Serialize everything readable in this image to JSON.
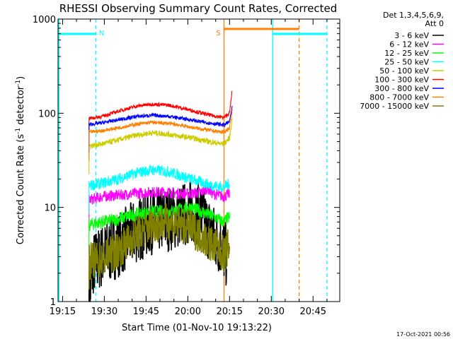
{
  "chart_data": {
    "type": "line",
    "title": "RHESSI Observing Summary Count Rates, Corrected",
    "xlabel": "Start Time (01-Nov-10 19:13:22)",
    "ylabel_main": "Corrected Count Rate (s",
    "ylabel_sup1": "-1",
    "ylabel_mid": " detector",
    "ylabel_sup2": "-1",
    "ylabel_end": ")",
    "yscale": "log",
    "ylim": [
      1,
      1000
    ],
    "yticks": [
      {
        "value": 1,
        "label": "1"
      },
      {
        "value": 10,
        "label": "10"
      },
      {
        "value": 100,
        "label": "100"
      },
      {
        "value": 1000,
        "label": "1000"
      }
    ],
    "xlim": [
      "19:13:22",
      "20:53:00"
    ],
    "xticks": [
      {
        "minutes": 0,
        "label": "19:15"
      },
      {
        "minutes": 15,
        "label": "19:30"
      },
      {
        "minutes": 30,
        "label": "19:45"
      },
      {
        "minutes": 45,
        "label": "20:00"
      },
      {
        "minutes": 60,
        "label": "20:15"
      },
      {
        "minutes": 75,
        "label": "20:30"
      },
      {
        "minutes": 90,
        "label": "20:45"
      }
    ],
    "legend_header": [
      "Det 1,3,4,5,6,9,",
      "Att 0"
    ],
    "legend_position": "right",
    "series": [
      {
        "name": "3 - 6 keV",
        "color": "#000000",
        "points": [
          [
            9.5,
            1
          ],
          [
            11,
            2.5
          ],
          [
            14,
            3
          ],
          [
            20,
            4
          ],
          [
            26,
            5.5
          ],
          [
            32,
            7
          ],
          [
            38,
            7.5
          ],
          [
            42,
            8
          ],
          [
            46,
            9
          ],
          [
            50,
            8
          ],
          [
            54,
            5
          ],
          [
            57,
            4
          ],
          [
            59,
            3
          ]
        ]
      },
      {
        "name": "6 - 12 keV",
        "color": "#ff00ff",
        "points": [
          [
            9.5,
            12
          ],
          [
            14,
            13
          ],
          [
            20,
            13.5
          ],
          [
            26,
            14
          ],
          [
            32,
            14.5
          ],
          [
            38,
            14.5
          ],
          [
            42,
            14
          ],
          [
            46,
            14
          ],
          [
            50,
            14.5
          ],
          [
            52,
            16
          ],
          [
            54,
            14
          ],
          [
            58,
            13
          ],
          [
            60,
            14
          ]
        ]
      },
      {
        "name": "12 - 25 keV",
        "color": "#00ff00",
        "points": [
          [
            9.5,
            6.5
          ],
          [
            14,
            7
          ],
          [
            20,
            7.5
          ],
          [
            26,
            8.5
          ],
          [
            32,
            9
          ],
          [
            38,
            9
          ],
          [
            42,
            9.5
          ],
          [
            46,
            10
          ],
          [
            50,
            9
          ],
          [
            54,
            8
          ],
          [
            58,
            7
          ],
          [
            60,
            8
          ]
        ]
      },
      {
        "name": "25 - 50 keV",
        "color": "#00ffff",
        "points": [
          [
            9.5,
            17
          ],
          [
            14,
            18
          ],
          [
            20,
            20
          ],
          [
            26,
            23
          ],
          [
            32,
            25
          ],
          [
            38,
            24
          ],
          [
            42,
            22
          ],
          [
            46,
            20
          ],
          [
            50,
            18.5
          ],
          [
            54,
            17
          ],
          [
            58,
            16.5
          ],
          [
            60,
            18
          ]
        ]
      },
      {
        "name": "50 - 100 keV",
        "color": "#cccc00",
        "points": [
          [
            9.5,
            45
          ],
          [
            14,
            47
          ],
          [
            20,
            52
          ],
          [
            26,
            58
          ],
          [
            32,
            62
          ],
          [
            38,
            60
          ],
          [
            42,
            57
          ],
          [
            46,
            55
          ],
          [
            50,
            52
          ],
          [
            54,
            49
          ],
          [
            58,
            47
          ],
          [
            60,
            55
          ],
          [
            61,
            90
          ]
        ]
      },
      {
        "name": "100 - 300 keV",
        "color": "#ff0000",
        "points": [
          [
            9.5,
            88
          ],
          [
            14,
            92
          ],
          [
            20,
            105
          ],
          [
            26,
            118
          ],
          [
            32,
            125
          ],
          [
            38,
            122
          ],
          [
            42,
            115
          ],
          [
            46,
            108
          ],
          [
            50,
            100
          ],
          [
            54,
            94
          ],
          [
            58,
            90
          ],
          [
            60,
            100
          ],
          [
            61,
            180
          ]
        ]
      },
      {
        "name": "300 - 800 keV",
        "color": "#0000ff",
        "points": [
          [
            9.5,
            76
          ],
          [
            14,
            79
          ],
          [
            20,
            85
          ],
          [
            26,
            92
          ],
          [
            32,
            95
          ],
          [
            38,
            93
          ],
          [
            42,
            89
          ],
          [
            46,
            85
          ],
          [
            50,
            81
          ],
          [
            54,
            78
          ],
          [
            58,
            75
          ],
          [
            60,
            82
          ],
          [
            61,
            120
          ]
        ]
      },
      {
        "name": "800 - 7000 keV",
        "color": "#ff8000",
        "points": [
          [
            9.5,
            63
          ],
          [
            14,
            65
          ],
          [
            20,
            70
          ],
          [
            26,
            76
          ],
          [
            32,
            80
          ],
          [
            38,
            78
          ],
          [
            42,
            75
          ],
          [
            46,
            71
          ],
          [
            50,
            68
          ],
          [
            54,
            65
          ],
          [
            58,
            63
          ],
          [
            60,
            70
          ],
          [
            61,
            110
          ]
        ]
      },
      {
        "name": "7000 - 15000 keV",
        "color": "#808000",
        "points": [
          [
            9.5,
            2.7
          ],
          [
            14,
            2.8
          ],
          [
            20,
            3.5
          ],
          [
            26,
            5
          ],
          [
            32,
            6.5
          ],
          [
            38,
            7
          ],
          [
            42,
            6.5
          ],
          [
            46,
            6
          ],
          [
            50,
            5
          ],
          [
            54,
            4
          ],
          [
            58,
            3.2
          ],
          [
            60,
            4
          ]
        ]
      }
    ],
    "annotations": [
      {
        "label": "N",
        "minutes": 12,
        "color": "#00ffff"
      },
      {
        "label": "S",
        "minutes": 58,
        "color": "#ff8000"
      }
    ]
  },
  "footer_timestamp": "17-Oct-2021 00:56"
}
